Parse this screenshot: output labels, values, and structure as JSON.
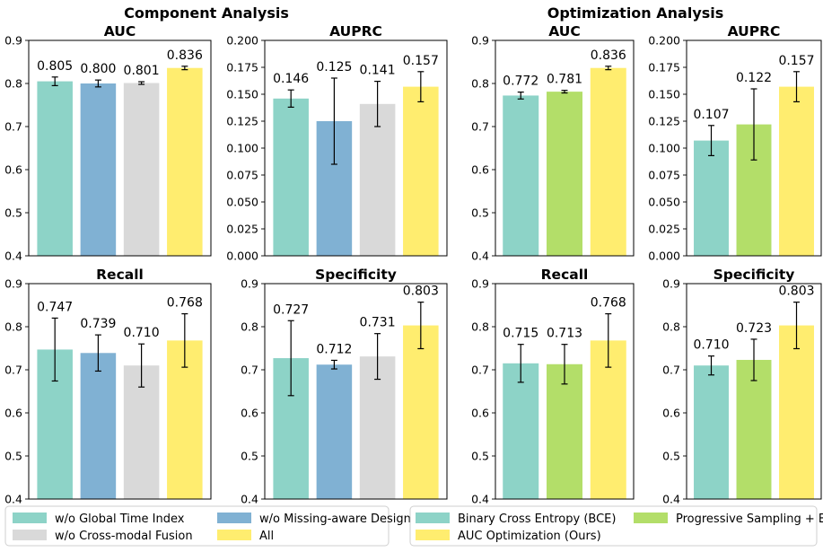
{
  "sections": [
    {
      "title": "Component Analysis"
    },
    {
      "title": "Optimization Analysis"
    }
  ],
  "legends": [
    {
      "items": [
        {
          "label": "w/o Global Time Index",
          "color": "#8dd3c7"
        },
        {
          "label": "w/o Missing-aware Design",
          "color": "#80b1d3"
        },
        {
          "label": "w/o Cross-modal Fusion",
          "color": "#d9d9d9"
        },
        {
          "label": "All",
          "color": "#ffed6f"
        }
      ]
    },
    {
      "items": [
        {
          "label": "Binary Cross Entropy (BCE)",
          "color": "#8dd3c7"
        },
        {
          "label": "Progressive Sampling + BCE",
          "color": "#b3de69"
        },
        {
          "label": "AUC Optimization (Ours)",
          "color": "#ffed6f"
        }
      ]
    }
  ],
  "chart_data": [
    {
      "type": "bar",
      "section": "Component Analysis",
      "title": "AUC",
      "categories": [
        "w/o Global Time Index",
        "w/o Missing-aware Design",
        "w/o Cross-modal Fusion",
        "All"
      ],
      "values": [
        0.805,
        0.8,
        0.801,
        0.836
      ],
      "errors": [
        0.01,
        0.008,
        0.003,
        0.004
      ],
      "labels": [
        "0.805",
        "0.800",
        "0.801",
        "0.836"
      ],
      "colors": [
        "#8dd3c7",
        "#80b1d3",
        "#d9d9d9",
        "#ffed6f"
      ],
      "ylim": [
        0.4,
        0.9
      ],
      "yticks": [
        "0.4",
        "0.5",
        "0.6",
        "0.7",
        "0.8",
        "0.9"
      ]
    },
    {
      "type": "bar",
      "section": "Component Analysis",
      "title": "AUPRC",
      "categories": [
        "w/o Global Time Index",
        "w/o Missing-aware Design",
        "w/o Cross-modal Fusion",
        "All"
      ],
      "values": [
        0.146,
        0.125,
        0.141,
        0.157
      ],
      "errors": [
        0.008,
        0.04,
        0.021,
        0.014
      ],
      "labels": [
        "0.146",
        "0.125",
        "0.141",
        "0.157"
      ],
      "colors": [
        "#8dd3c7",
        "#80b1d3",
        "#d9d9d9",
        "#ffed6f"
      ],
      "ylim": [
        0.0,
        0.2
      ],
      "yticks": [
        "0.000",
        "0.025",
        "0.050",
        "0.075",
        "0.100",
        "0.125",
        "0.150",
        "0.175",
        "0.200"
      ]
    },
    {
      "type": "bar",
      "section": "Optimization Analysis",
      "title": "AUC",
      "categories": [
        "Binary Cross Entropy (BCE)",
        "Progressive Sampling + BCE",
        "AUC Optimization (Ours)"
      ],
      "values": [
        0.772,
        0.781,
        0.836
      ],
      "errors": [
        0.008,
        0.003,
        0.004
      ],
      "labels": [
        "0.772",
        "0.781",
        "0.836"
      ],
      "colors": [
        "#8dd3c7",
        "#b3de69",
        "#ffed6f"
      ],
      "ylim": [
        0.4,
        0.9
      ],
      "yticks": [
        "0.4",
        "0.5",
        "0.6",
        "0.7",
        "0.8",
        "0.9"
      ]
    },
    {
      "type": "bar",
      "section": "Optimization Analysis",
      "title": "AUPRC",
      "categories": [
        "Binary Cross Entropy (BCE)",
        "Progressive Sampling + BCE",
        "AUC Optimization (Ours)"
      ],
      "values": [
        0.107,
        0.122,
        0.157
      ],
      "errors": [
        0.014,
        0.033,
        0.014
      ],
      "labels": [
        "0.107",
        "0.122",
        "0.157"
      ],
      "colors": [
        "#8dd3c7",
        "#b3de69",
        "#ffed6f"
      ],
      "ylim": [
        0.0,
        0.2
      ],
      "yticks": [
        "0.000",
        "0.025",
        "0.050",
        "0.075",
        "0.100",
        "0.125",
        "0.150",
        "0.175",
        "0.200"
      ]
    },
    {
      "type": "bar",
      "section": "Component Analysis",
      "title": "Recall",
      "categories": [
        "w/o Global Time Index",
        "w/o Missing-aware Design",
        "w/o Cross-modal Fusion",
        "All"
      ],
      "values": [
        0.747,
        0.739,
        0.71,
        0.768
      ],
      "errors": [
        0.073,
        0.042,
        0.05,
        0.062
      ],
      "labels": [
        "0.747",
        "0.739",
        "0.710",
        "0.768"
      ],
      "colors": [
        "#8dd3c7",
        "#80b1d3",
        "#d9d9d9",
        "#ffed6f"
      ],
      "ylim": [
        0.4,
        0.9
      ],
      "yticks": [
        "0.4",
        "0.5",
        "0.6",
        "0.7",
        "0.8",
        "0.9"
      ]
    },
    {
      "type": "bar",
      "section": "Component Analysis",
      "title": "Specificity",
      "categories": [
        "w/o Global Time Index",
        "w/o Missing-aware Design",
        "w/o Cross-modal Fusion",
        "All"
      ],
      "values": [
        0.727,
        0.712,
        0.731,
        0.803
      ],
      "errors": [
        0.087,
        0.01,
        0.053,
        0.054
      ],
      "labels": [
        "0.727",
        "0.712",
        "0.731",
        "0.803"
      ],
      "colors": [
        "#8dd3c7",
        "#80b1d3",
        "#d9d9d9",
        "#ffed6f"
      ],
      "ylim": [
        0.4,
        0.9
      ],
      "yticks": [
        "0.4",
        "0.5",
        "0.6",
        "0.7",
        "0.8",
        "0.9"
      ]
    },
    {
      "type": "bar",
      "section": "Optimization Analysis",
      "title": "Recall",
      "categories": [
        "Binary Cross Entropy (BCE)",
        "Progressive Sampling + BCE",
        "AUC Optimization (Ours)"
      ],
      "values": [
        0.715,
        0.713,
        0.768
      ],
      "errors": [
        0.044,
        0.046,
        0.062
      ],
      "labels": [
        "0.715",
        "0.713",
        "0.768"
      ],
      "colors": [
        "#8dd3c7",
        "#b3de69",
        "#ffed6f"
      ],
      "ylim": [
        0.4,
        0.9
      ],
      "yticks": [
        "0.4",
        "0.5",
        "0.6",
        "0.7",
        "0.8",
        "0.9"
      ]
    },
    {
      "type": "bar",
      "section": "Optimization Analysis",
      "title": "Specificity",
      "categories": [
        "Binary Cross Entropy (BCE)",
        "Progressive Sampling + BCE",
        "AUC Optimization (Ours)"
      ],
      "values": [
        0.71,
        0.723,
        0.803
      ],
      "errors": [
        0.022,
        0.048,
        0.054
      ],
      "labels": [
        "0.710",
        "0.723",
        "0.803"
      ],
      "colors": [
        "#8dd3c7",
        "#b3de69",
        "#ffed6f"
      ],
      "ylim": [
        0.4,
        0.9
      ],
      "yticks": [
        "0.4",
        "0.5",
        "0.6",
        "0.7",
        "0.8",
        "0.9"
      ]
    }
  ]
}
